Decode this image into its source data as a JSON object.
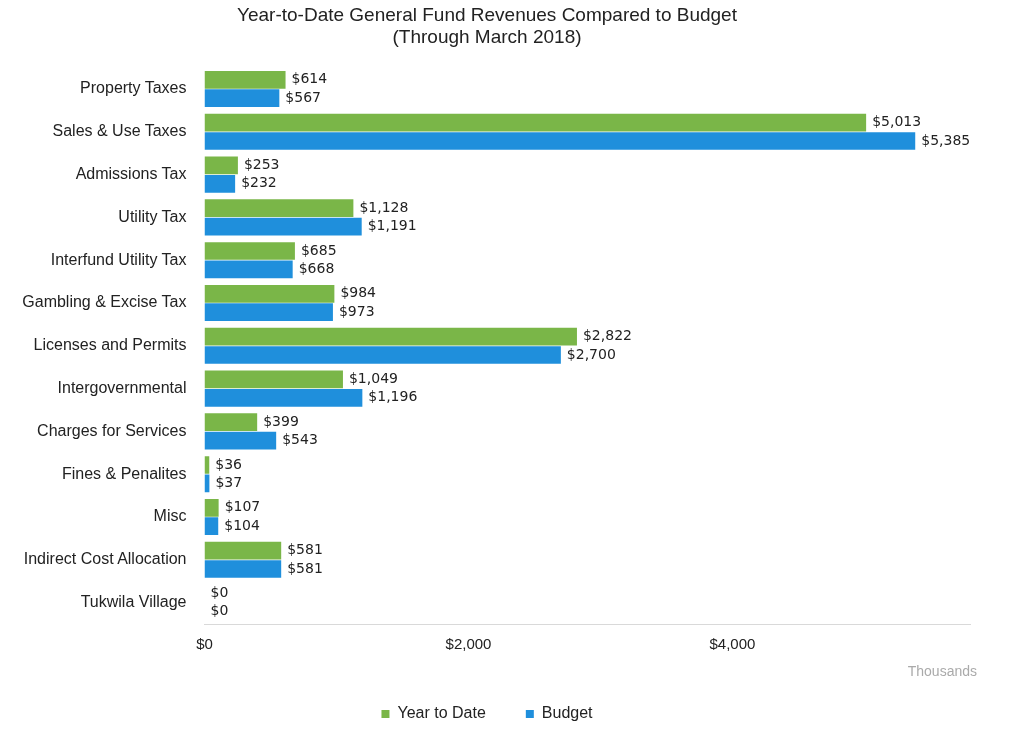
{
  "chart_data": {
    "type": "bar",
    "orientation": "horizontal",
    "title": [
      "Year-to-Date General Fund Revenues Compared to Budget",
      "(Through March 2018)"
    ],
    "categories": [
      "Property Taxes",
      "Sales & Use Taxes",
      "Admissions Tax",
      "Utility Tax",
      "Interfund Utility Tax",
      "Gambling & Excise Tax",
      "Licenses and Permits",
      "Intergovernmental",
      "Charges for Services",
      "Fines & Penalites",
      "Misc",
      "Indirect Cost Allocation",
      "Tukwila Village"
    ],
    "series": [
      {
        "name": "Year to Date",
        "color": "#7ab648",
        "values": [
          614,
          5013,
          253,
          1128,
          685,
          984,
          2822,
          1049,
          399,
          36,
          107,
          581,
          0
        ],
        "value_labels": [
          "$614",
          "$5,013",
          "$253",
          "$1,128",
          "$685",
          "$984",
          "$2,822",
          "$1,049",
          "$399",
          "$36",
          "$107",
          "$581",
          "$0"
        ]
      },
      {
        "name": "Budget",
        "color": "#1f8fdc",
        "values": [
          567,
          5385,
          232,
          1191,
          668,
          973,
          2700,
          1196,
          543,
          37,
          104,
          581,
          0
        ],
        "value_labels": [
          "$567",
          "$5,385",
          "$232",
          "$1,191",
          "$668",
          "$973",
          "$2,700",
          "$1,196",
          "$543",
          "$37",
          "$104",
          "$581",
          "$0"
        ]
      }
    ],
    "xlim": [
      0,
      5800
    ],
    "xticks": [
      {
        "value": 0,
        "label": "$0"
      },
      {
        "value": 2000,
        "label": "$2,000"
      },
      {
        "value": 4000,
        "label": "$4,000"
      }
    ],
    "grid": false,
    "legend": "bottom",
    "annotations": [
      "Thousands"
    ]
  }
}
